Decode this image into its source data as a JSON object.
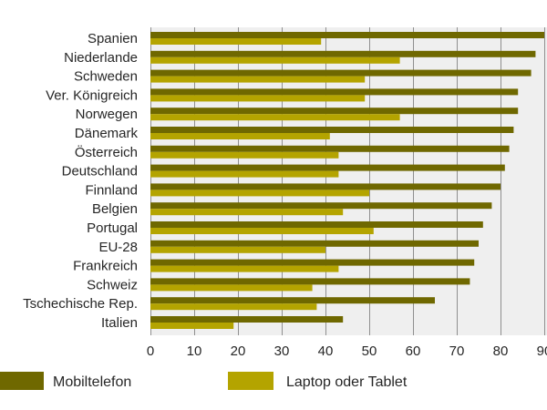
{
  "chart_data": {
    "type": "bar",
    "orientation": "horizontal",
    "title": "",
    "xlabel": "",
    "ylabel": "",
    "categories": [
      "Spanien",
      "Niederlande",
      "Schweden",
      "Ver. Königreich",
      "Norwegen",
      "Dänemark",
      "Österreich",
      "Deutschland",
      "Finnland",
      "Belgien",
      "Portugal",
      "EU-28",
      "Frankreich",
      "Schweiz",
      "Tschechische Rep.",
      "Italien"
    ],
    "series": [
      {
        "name": "Mobiltelefon",
        "color": "#6f6800",
        "values": [
          90,
          88,
          87,
          84,
          84,
          83,
          82,
          81,
          80,
          78,
          76,
          75,
          74,
          73,
          65,
          44
        ]
      },
      {
        "name": "Laptop oder Tablet",
        "color": "#b4a400",
        "values": [
          39,
          57,
          49,
          49,
          57,
          41,
          43,
          43,
          50,
          44,
          51,
          40,
          43,
          37,
          38,
          19
        ]
      }
    ],
    "xlim": [
      0,
      90
    ],
    "xticks": [
      0,
      10,
      20,
      30,
      40,
      50,
      60,
      70,
      80,
      90
    ],
    "xtick_labels": [
      "0",
      "10",
      "20",
      "30",
      "40",
      "50",
      "60",
      "70",
      "80",
      "90"
    ],
    "grid": true,
    "legend": "bottom",
    "plot_background": "#efefef"
  }
}
